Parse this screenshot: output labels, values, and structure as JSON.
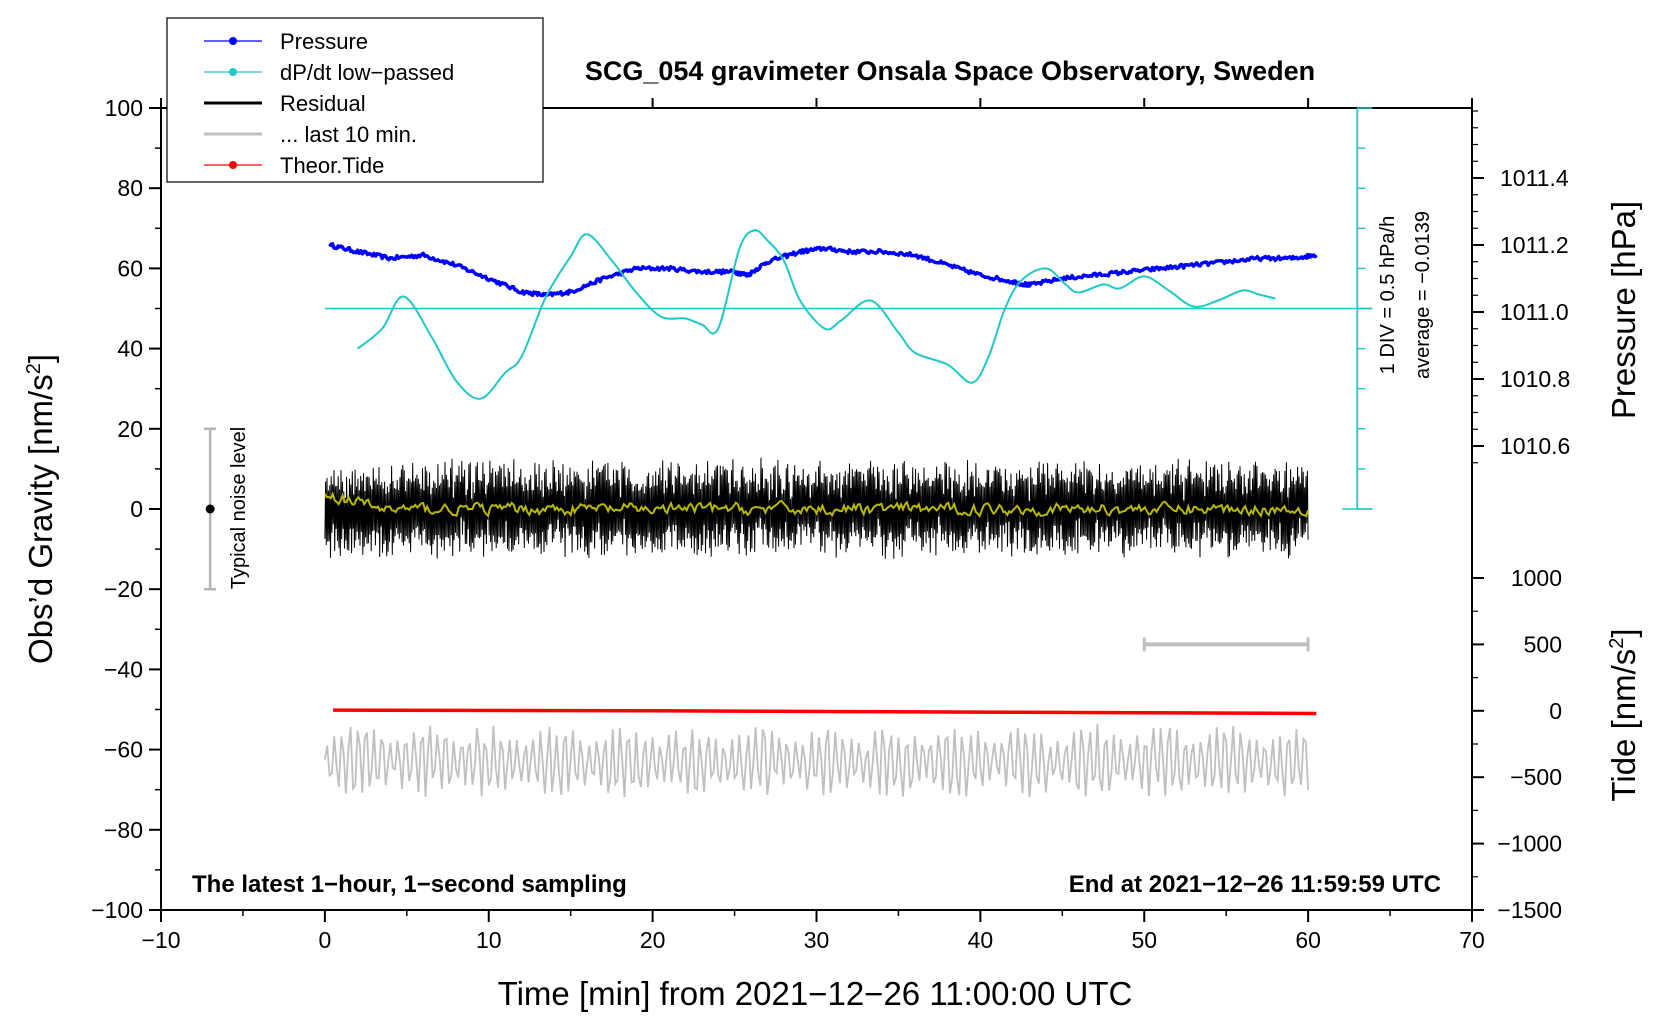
{
  "chart_data": {
    "type": "line",
    "title": "SCG_054 gravimeter Onsala Space Observatory, Sweden",
    "xlabel": "Time [min] from 2021−12−26 11:00:00 UTC",
    "ylabel_left_main": "Obs’d Gravity [nm/s",
    "ylabel_left_sup": "2",
    "ylabel_left_end": "]",
    "ylabel_right_pressure": "Pressure [hPa]",
    "ylabel_right_tide_main": "Tide [nm/s",
    "ylabel_right_tide_sup": "2",
    "ylabel_right_tide_end": "]",
    "xlim": [
      -10,
      70
    ],
    "ylim_left": [
      -100,
      100
    ],
    "pressure_range": [
      1010.6,
      1011.4
    ],
    "tide_range": [
      -1500,
      1000
    ],
    "x_ticks": [
      "−10",
      "0",
      "10",
      "20",
      "30",
      "40",
      "50",
      "60",
      "70"
    ],
    "y_ticks_left": [
      "100",
      "80",
      "60",
      "40",
      "20",
      "0",
      "−20",
      "−40",
      "−60",
      "−80",
      "−100"
    ],
    "pressure_ticks": [
      "1011.4",
      "1011.2",
      "1011.0",
      "1010.8",
      "1010.6"
    ],
    "tide_ticks": [
      "1000",
      "500",
      "0",
      "−500",
      "−1000",
      "−1500"
    ],
    "legend": [
      {
        "label": "Pressure",
        "color": "#0000ff",
        "marker": true
      },
      {
        "label": "dP/dt low−passed",
        "color": "#20c8c8",
        "marker": true
      },
      {
        "label": "Residual",
        "color": "#000000",
        "marker": false
      },
      {
        "label": "... last 10 min.",
        "color": "#c0c0c0",
        "marker": false
      },
      {
        "label": "Theor.Tide",
        "color": "#ff0000",
        "marker": true
      }
    ],
    "annotations": {
      "footer_left": "The latest 1−hour, 1−second sampling",
      "footer_right": "End at 2021−12−26 11:59:59 UTC",
      "noise_label": "Typical noise level",
      "div_label": "1 DIV = 0.5 hPa/h",
      "avg_label": "average = −0.0139"
    },
    "noise_bar": {
      "x": -7,
      "y_center": 0,
      "y_min": -20,
      "y_max": 20
    },
    "last10_bar": {
      "x_start": 50,
      "x_end": 60,
      "tide": 500
    },
    "series": [
      {
        "name": "Pressure",
        "color": "#0000ff",
        "axis": "pressure",
        "x": [
          0.3,
          2,
          4,
          6,
          8,
          10,
          12,
          13.5,
          15,
          17,
          19,
          21,
          23,
          25,
          25.8,
          27,
          29,
          30.5,
          32,
          34,
          36,
          38,
          40,
          42,
          43,
          45,
          47,
          49,
          51,
          53,
          55,
          57,
          59,
          60.5
        ],
        "y": [
          1011.2,
          1011.18,
          1011.16,
          1011.17,
          1011.14,
          1011.1,
          1011.06,
          1011.05,
          1011.06,
          1011.1,
          1011.13,
          1011.13,
          1011.12,
          1011.12,
          1011.11,
          1011.15,
          1011.18,
          1011.19,
          1011.18,
          1011.18,
          1011.17,
          1011.14,
          1011.11,
          1011.09,
          1011.08,
          1011.1,
          1011.11,
          1011.12,
          1011.13,
          1011.14,
          1011.15,
          1011.16,
          1011.16,
          1011.17
        ]
      },
      {
        "name": "dP/dt low-passed",
        "color": "#20c8c8",
        "axis": "left",
        "x": [
          2,
          3.5,
          4.8,
          6.5,
          8,
          9.5,
          11,
          12,
          13.5,
          15,
          16,
          17.5,
          19,
          20.5,
          22,
          23,
          24,
          25.3,
          26.2,
          27,
          28,
          29,
          30.5,
          31.5,
          33.3,
          35,
          36,
          38,
          39.5,
          40.5,
          41.5,
          42.5,
          44,
          45.2,
          46,
          47.5,
          48.5,
          50,
          51.5,
          53,
          54.5,
          56,
          57,
          58
        ],
        "y": [
          40,
          45,
          53,
          43,
          32,
          27.5,
          34,
          38,
          53,
          63,
          68.5,
          62,
          54,
          48,
          47.5,
          46,
          45,
          65,
          69.5,
          67,
          62,
          52,
          45,
          47,
          52,
          44,
          39,
          36,
          31.5,
          38,
          50,
          57,
          60,
          56,
          54,
          56,
          55,
          58,
          54.5,
          50.5,
          52,
          54.5,
          53.5,
          52.5
        ]
      },
      {
        "name": "Residual",
        "color": "#000000",
        "axis": "left",
        "generated": "noise",
        "amplitude": 11,
        "x_start": 0,
        "x_end": 60
      },
      {
        "name": "Residual smoothed",
        "color": "#b8b800",
        "axis": "left",
        "generated": "smooth-noise",
        "amplitude": 1.5,
        "x_start": 0,
        "x_end": 60
      },
      {
        "name": "... last 10 min.",
        "color": "#c0c0c0",
        "axis": "left",
        "generated": "oscillation",
        "center": -63,
        "amplitude": 10,
        "x_start": 0,
        "x_end": 60
      },
      {
        "name": "Theor.Tide",
        "color": "#ff0000",
        "axis": "tide",
        "x": [
          0.5,
          20,
          40,
          60.5
        ],
        "y": [
          5,
          0,
          -10,
          -20
        ]
      }
    ],
    "dpdt_reference_line": {
      "y": 50,
      "x_start": 0,
      "x_end": 63
    }
  }
}
